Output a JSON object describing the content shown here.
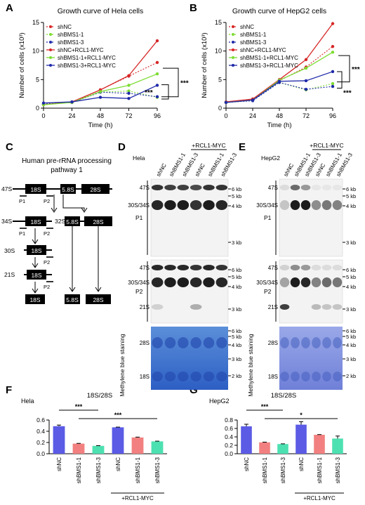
{
  "panel_labels": {
    "A": "A",
    "B": "B",
    "C": "C",
    "D": "D",
    "E": "E",
    "F": "F",
    "G": "G"
  },
  "chart_data": [
    {
      "type": "line",
      "title": "Growth curve of Hela cells",
      "xlabel": "Time (h)",
      "ylabel": "Number of cells (x10³)",
      "x": [
        0,
        24,
        48,
        72,
        96
      ],
      "xticks": [
        "0",
        "24",
        "48",
        "72",
        "96"
      ],
      "yticks": [
        "0",
        "5",
        "10",
        "15"
      ],
      "ylim": [
        0,
        15
      ],
      "series": [
        {
          "name": "shNC",
          "color": "#d62728",
          "dotted": true,
          "values": [
            0.7,
            1.0,
            3.2,
            5.6,
            8.0
          ]
        },
        {
          "name": "shBMS1-1",
          "color": "#7ddc33",
          "dotted": true,
          "values": [
            0.7,
            1.0,
            2.8,
            3.0,
            1.9
          ]
        },
        {
          "name": "shBMS1-3",
          "color": "#1f2aa8",
          "dotted": true,
          "values": [
            0.7,
            1.0,
            2.8,
            2.6,
            2.0
          ]
        },
        {
          "name": "shNC+RCL1-MYC",
          "color": "#d62728",
          "dotted": false,
          "values": [
            0.6,
            1.1,
            3.2,
            5.7,
            11.8
          ]
        },
        {
          "name": "shBMS1-1+RCL1-MYC",
          "color": "#7ddc33",
          "dotted": false,
          "values": [
            0.6,
            1.0,
            2.9,
            4.0,
            6.0
          ]
        },
        {
          "name": "shBMS1-3+RCL1-MYC",
          "color": "#1f2aa8",
          "dotted": false,
          "values": [
            0.9,
            1.1,
            1.9,
            1.7,
            4.0
          ]
        }
      ],
      "significance": [
        "***",
        "***"
      ]
    },
    {
      "type": "line",
      "title": "Growth curve of HepG2 cells",
      "xlabel": "Time (h)",
      "ylabel": "Number of cells (x10³)",
      "x": [
        0,
        24,
        48,
        72,
        96
      ],
      "xticks": [
        "0",
        "24",
        "48",
        "72",
        "96"
      ],
      "yticks": [
        "0",
        "5",
        "10",
        "15"
      ],
      "ylim": [
        0,
        15
      ],
      "series": [
        {
          "name": "shNC",
          "color": "#d62728",
          "dotted": true,
          "values": [
            1.0,
            1.5,
            4.8,
            7.2,
            10.8
          ]
        },
        {
          "name": "shBMS1-1",
          "color": "#7ddc33",
          "dotted": true,
          "values": [
            1.0,
            1.4,
            4.5,
            3.2,
            4.3
          ]
        },
        {
          "name": "shBMS1-3",
          "color": "#1f2aa8",
          "dotted": true,
          "values": [
            1.0,
            1.3,
            4.5,
            3.3,
            3.8
          ]
        },
        {
          "name": "shNC+RCL1-MYC",
          "color": "#d62728",
          "dotted": false,
          "values": [
            1.1,
            1.6,
            5.0,
            8.5,
            14.8
          ]
        },
        {
          "name": "shBMS1-1+RCL1-MYC",
          "color": "#7ddc33",
          "dotted": false,
          "values": [
            1.0,
            1.4,
            4.9,
            7.0,
            9.8
          ]
        },
        {
          "name": "shBMS1-3+RCL1-MYC",
          "color": "#1f2aa8",
          "dotted": false,
          "values": [
            1.0,
            1.4,
            4.7,
            4.8,
            6.4
          ]
        }
      ],
      "significance": [
        "***",
        "***"
      ]
    },
    {
      "type": "bar",
      "cell_label": "Hela",
      "title": "18S/28S",
      "categories": [
        "shNC",
        "shBMS1-1",
        "shBMS1-3",
        "shNC",
        "shBMS1-1",
        "shBMS1-3"
      ],
      "values": [
        0.49,
        0.18,
        0.14,
        0.47,
        0.29,
        0.22
      ],
      "errors": [
        0.02,
        0.004,
        0.004,
        0.004,
        0.006,
        0.004
      ],
      "colors": [
        "#5b5be6",
        "#f28080",
        "#4de0b0",
        "#5b5be6",
        "#f28080",
        "#4de0b0"
      ],
      "yticks": [
        "0.0",
        "0.2",
        "0.4",
        "0.6"
      ],
      "ylim": [
        0,
        0.6
      ],
      "group_label": "+RCL1-MYC",
      "significance": [
        "***",
        "***"
      ]
    },
    {
      "type": "bar",
      "cell_label": "HepG2",
      "title": "18S/28S",
      "categories": [
        "shNC",
        "shBMS1-1",
        "shBMS1-3",
        "shNC",
        "shBMS1-1",
        "shBMS1-3"
      ],
      "values": [
        0.65,
        0.27,
        0.23,
        0.69,
        0.45,
        0.36
      ],
      "errors": [
        0.05,
        0.005,
        0.005,
        0.07,
        0.005,
        0.06
      ],
      "colors": [
        "#5b5be6",
        "#f28080",
        "#4de0b0",
        "#5b5be6",
        "#f28080",
        "#4de0b0"
      ],
      "yticks": [
        "0.0",
        "0.2",
        "0.4",
        "0.6",
        "0.8"
      ],
      "ylim": [
        0,
        0.8
      ],
      "group_label": "+RCL1-MYC",
      "significance": [
        "***",
        "*"
      ]
    }
  ],
  "pathway": {
    "title_line1": "Human pre-rRNA processing",
    "title_line2": "pathway 1",
    "labels": [
      "47S",
      "34S",
      "32S",
      "30S",
      "21S"
    ],
    "segments": [
      "18S",
      "5.8S",
      "28S"
    ],
    "probes": [
      "P1",
      "P2"
    ]
  },
  "blots": {
    "D": {
      "cell": "Hela",
      "lanes": [
        "shNC",
        "shBMS1-1",
        "shBMS1-3",
        "shNC",
        "shBMS1-1",
        "shBMS1-3"
      ],
      "group_label": "+RCL1-MYC",
      "sections": [
        {
          "probe": "P1",
          "bands": [
            "47S",
            "30S/34S"
          ],
          "sizes": [
            "6 kb",
            "5 kb",
            "4 kb",
            "3 kb"
          ]
        },
        {
          "probe": "P2",
          "bands": [
            "47S",
            "30S/34S",
            "21S"
          ],
          "sizes": [
            "6 kb",
            "5 kb",
            "4 kb",
            "3 kb"
          ]
        },
        {
          "probe": "Methylene blue staining",
          "bands": [
            "28S",
            "18S"
          ],
          "sizes": [
            "6 kb",
            "5 kb",
            "4 kb",
            "3 kb",
            "2 kb"
          ]
        }
      ]
    },
    "E": {
      "cell": "HepG2",
      "lanes": [
        "shNC",
        "shBMS1-1",
        "shBMS1-3",
        "shNC",
        "shBMS1-1",
        "shBMS1-3"
      ],
      "group_label": "+RCL1-MYC",
      "sections": [
        {
          "probe": "P1",
          "bands": [
            "47S",
            "30S/34S"
          ],
          "sizes": [
            "6 kb",
            "5 kb",
            "4 kb",
            "3 kb"
          ]
        },
        {
          "probe": "P2",
          "bands": [
            "47S",
            "30S/34S",
            "21S"
          ],
          "sizes": [
            "6 kb",
            "5 kb",
            "4 kb",
            "3 kb"
          ]
        },
        {
          "probe": "Methylene blue staining",
          "bands": [
            "28S",
            "18S"
          ],
          "sizes": [
            "6 kb",
            "5 kb",
            "4 kb",
            "3 kb",
            "2 kb"
          ]
        }
      ]
    }
  }
}
